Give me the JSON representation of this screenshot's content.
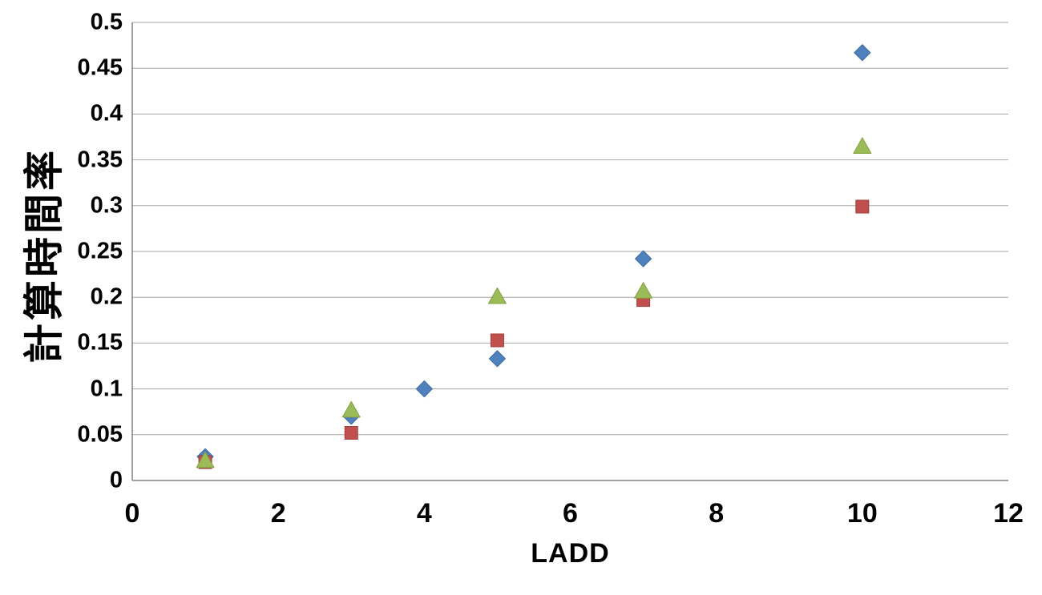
{
  "chart_data": {
    "type": "scatter",
    "title": "",
    "xlabel": "LADD",
    "ylabel": "計算時間率",
    "xlim": [
      0,
      12
    ],
    "ylim": [
      0,
      0.5
    ],
    "x_ticks": [
      0,
      2,
      4,
      6,
      8,
      10,
      12
    ],
    "x_tick_labels": [
      "0",
      "2",
      "4",
      "6",
      "8",
      "10",
      "12"
    ],
    "y_ticks": [
      0,
      0.05,
      0.1,
      0.15,
      0.2,
      0.25,
      0.3,
      0.35,
      0.4,
      0.45,
      0.5
    ],
    "y_tick_labels": [
      "0",
      "0.05",
      "0.1",
      "0.15",
      "0.2",
      "0.25",
      "0.3",
      "0.35",
      "0.4",
      "0.45",
      "0.5"
    ],
    "grid": "horizontal",
    "legend_position": "none",
    "series": [
      {
        "name": "series-1",
        "marker": "diamond",
        "color": "#4F81BD",
        "edge_color": "#3A6A9E",
        "points": [
          [
            1,
            0.026
          ],
          [
            3,
            0.07
          ],
          [
            4,
            0.1
          ],
          [
            5,
            0.133
          ],
          [
            7,
            0.242
          ],
          [
            10,
            0.467
          ]
        ]
      },
      {
        "name": "series-2",
        "marker": "square",
        "color": "#C0504D",
        "edge_color": "#A03C39",
        "points": [
          [
            1,
            0.02
          ],
          [
            3,
            0.052
          ],
          [
            5,
            0.153
          ],
          [
            7,
            0.197
          ],
          [
            10,
            0.299
          ]
        ]
      },
      {
        "name": "series-3",
        "marker": "triangle",
        "color": "#9BBB59",
        "edge_color": "#82A03F",
        "points": [
          [
            1,
            0.022
          ],
          [
            3,
            0.077
          ],
          [
            5,
            0.201
          ],
          [
            7,
            0.207
          ],
          [
            10,
            0.365
          ]
        ]
      }
    ],
    "colors": {
      "gridline": "#A6A6A6",
      "axis": "#808080",
      "text": "#000000",
      "background": "#FFFFFF"
    }
  }
}
